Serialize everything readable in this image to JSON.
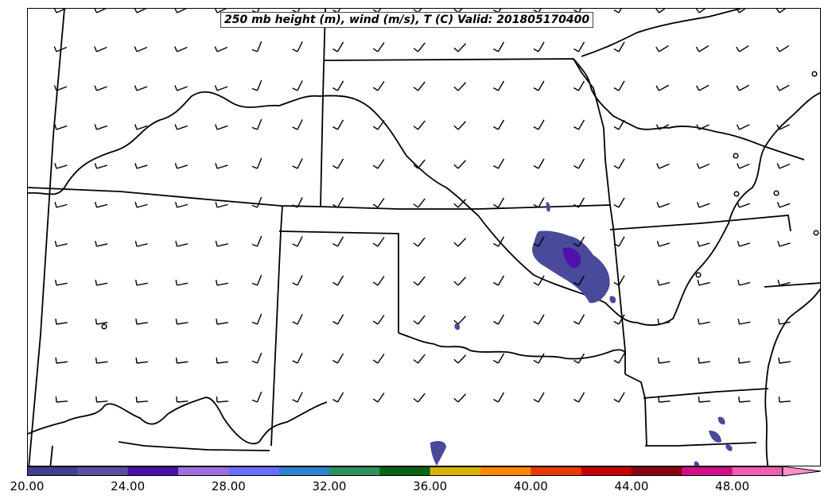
{
  "title": "250 mb height (m), wind (m/s), T (C) Valid: 201805170400",
  "colorbar": {
    "tick_labels": [
      "20.00",
      "24.00",
      "28.00",
      "32.00",
      "36.00",
      "40.00",
      "44.00",
      "48.00"
    ],
    "min": 20,
    "max": 51.5,
    "step": 2,
    "extend": "max",
    "colors": [
      "#3f3f8f",
      "#5a4fa0",
      "#4b10a8",
      "#a070e0",
      "#6870ff",
      "#3080d0",
      "#2e9060",
      "#0a6410",
      "#d8b000",
      "#ff8800",
      "#e83a00",
      "#c40000",
      "#8a0010",
      "#d0108a",
      "#f060b0",
      "#ff90cc"
    ]
  },
  "temperature_blobs_color": "#4a4a9a",
  "temperature_core_color": "#5010b0"
}
